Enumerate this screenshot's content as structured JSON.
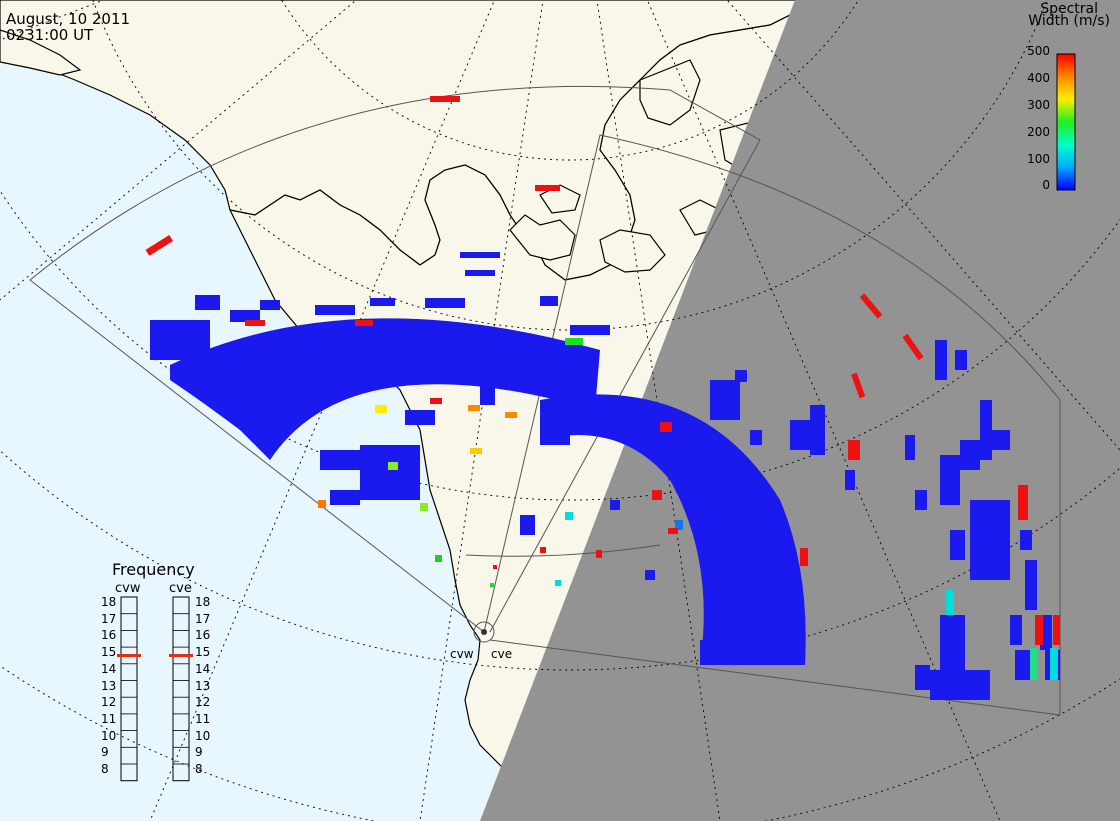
{
  "header": {
    "date": "August, 10 2011",
    "time": "0231:00 UT"
  },
  "colorbar": {
    "title_line1": "Spectral",
    "title_line2": "Width (m/s)",
    "ticks": [
      "500",
      "400",
      "300",
      "200",
      "100",
      "0"
    ],
    "range": [
      0,
      500
    ],
    "colors": [
      "#0000ff",
      "#00aaff",
      "#00ffcc",
      "#22ee22",
      "#ffee00",
      "#ff8800",
      "#ff0000"
    ]
  },
  "frequency_panel": {
    "title": "Frequency",
    "left_label": "cvw",
    "right_label": "cve",
    "scale": [
      "18",
      "17",
      "16",
      "15",
      "14",
      "13",
      "12",
      "11",
      "10",
      "9",
      "8"
    ],
    "cvw_value": 15,
    "cve_value": 15
  },
  "stations": {
    "west": "cvw",
    "east": "cve"
  },
  "colors": {
    "ocean": "#e8f6fd",
    "land": "#f8f7ea",
    "night": "#939393",
    "coast": "#000000",
    "marker": "#e03010"
  }
}
